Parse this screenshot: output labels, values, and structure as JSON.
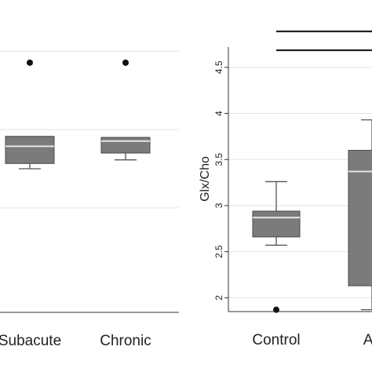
{
  "chart_data": [
    {
      "type": "box",
      "panel": "left",
      "categories": [
        "Subacute",
        "Chronic"
      ],
      "ylabel": "",
      "grid": true,
      "boxes": [
        {
          "category": "Subacute",
          "whisker_low": 2.75,
          "q1": 2.85,
          "median": 3.18,
          "q3": 3.37,
          "whisker_high": 3.37,
          "outliers": [
            4.78
          ]
        },
        {
          "category": "Chronic",
          "whisker_low": 2.92,
          "q1": 3.05,
          "median": 3.28,
          "q3": 3.35,
          "whisker_high": 3.35,
          "outliers": [
            4.78
          ]
        }
      ],
      "ylim": [
        0,
        5.8
      ],
      "gridlines": [
        2.0,
        3.5,
        5.0
      ]
    },
    {
      "type": "box",
      "panel": "right",
      "categories": [
        "Control",
        "Ac"
      ],
      "ylabel": "Glx/Cho",
      "yticks": [
        "2",
        "2.5",
        "3",
        "3.5",
        "4",
        "4.5"
      ],
      "ylim": [
        1.85,
        4.72
      ],
      "grid": true,
      "boxes": [
        {
          "category": "Control",
          "whisker_low": 2.57,
          "q1": 2.66,
          "median": 2.87,
          "q3": 2.94,
          "whisker_high": 3.26,
          "outliers": [
            1.87
          ]
        },
        {
          "category": "Ac",
          "whisker_low": 1.87,
          "q1": 2.13,
          "median": 3.37,
          "q3": 3.6,
          "whisker_high": 3.93,
          "outliers": []
        }
      ],
      "significance_bars": [
        {
          "y": 5.02
        },
        {
          "y": 4.67
        }
      ]
    }
  ],
  "colors": {
    "box_fill": "#7b7b7b",
    "box_stroke": "#4a4a4a",
    "median": "#e6e6e6",
    "whisker": "#555555",
    "outlier": "#111111",
    "grid": "#e3e3e3",
    "axis": "#333333",
    "sig_bar": "#222222"
  }
}
